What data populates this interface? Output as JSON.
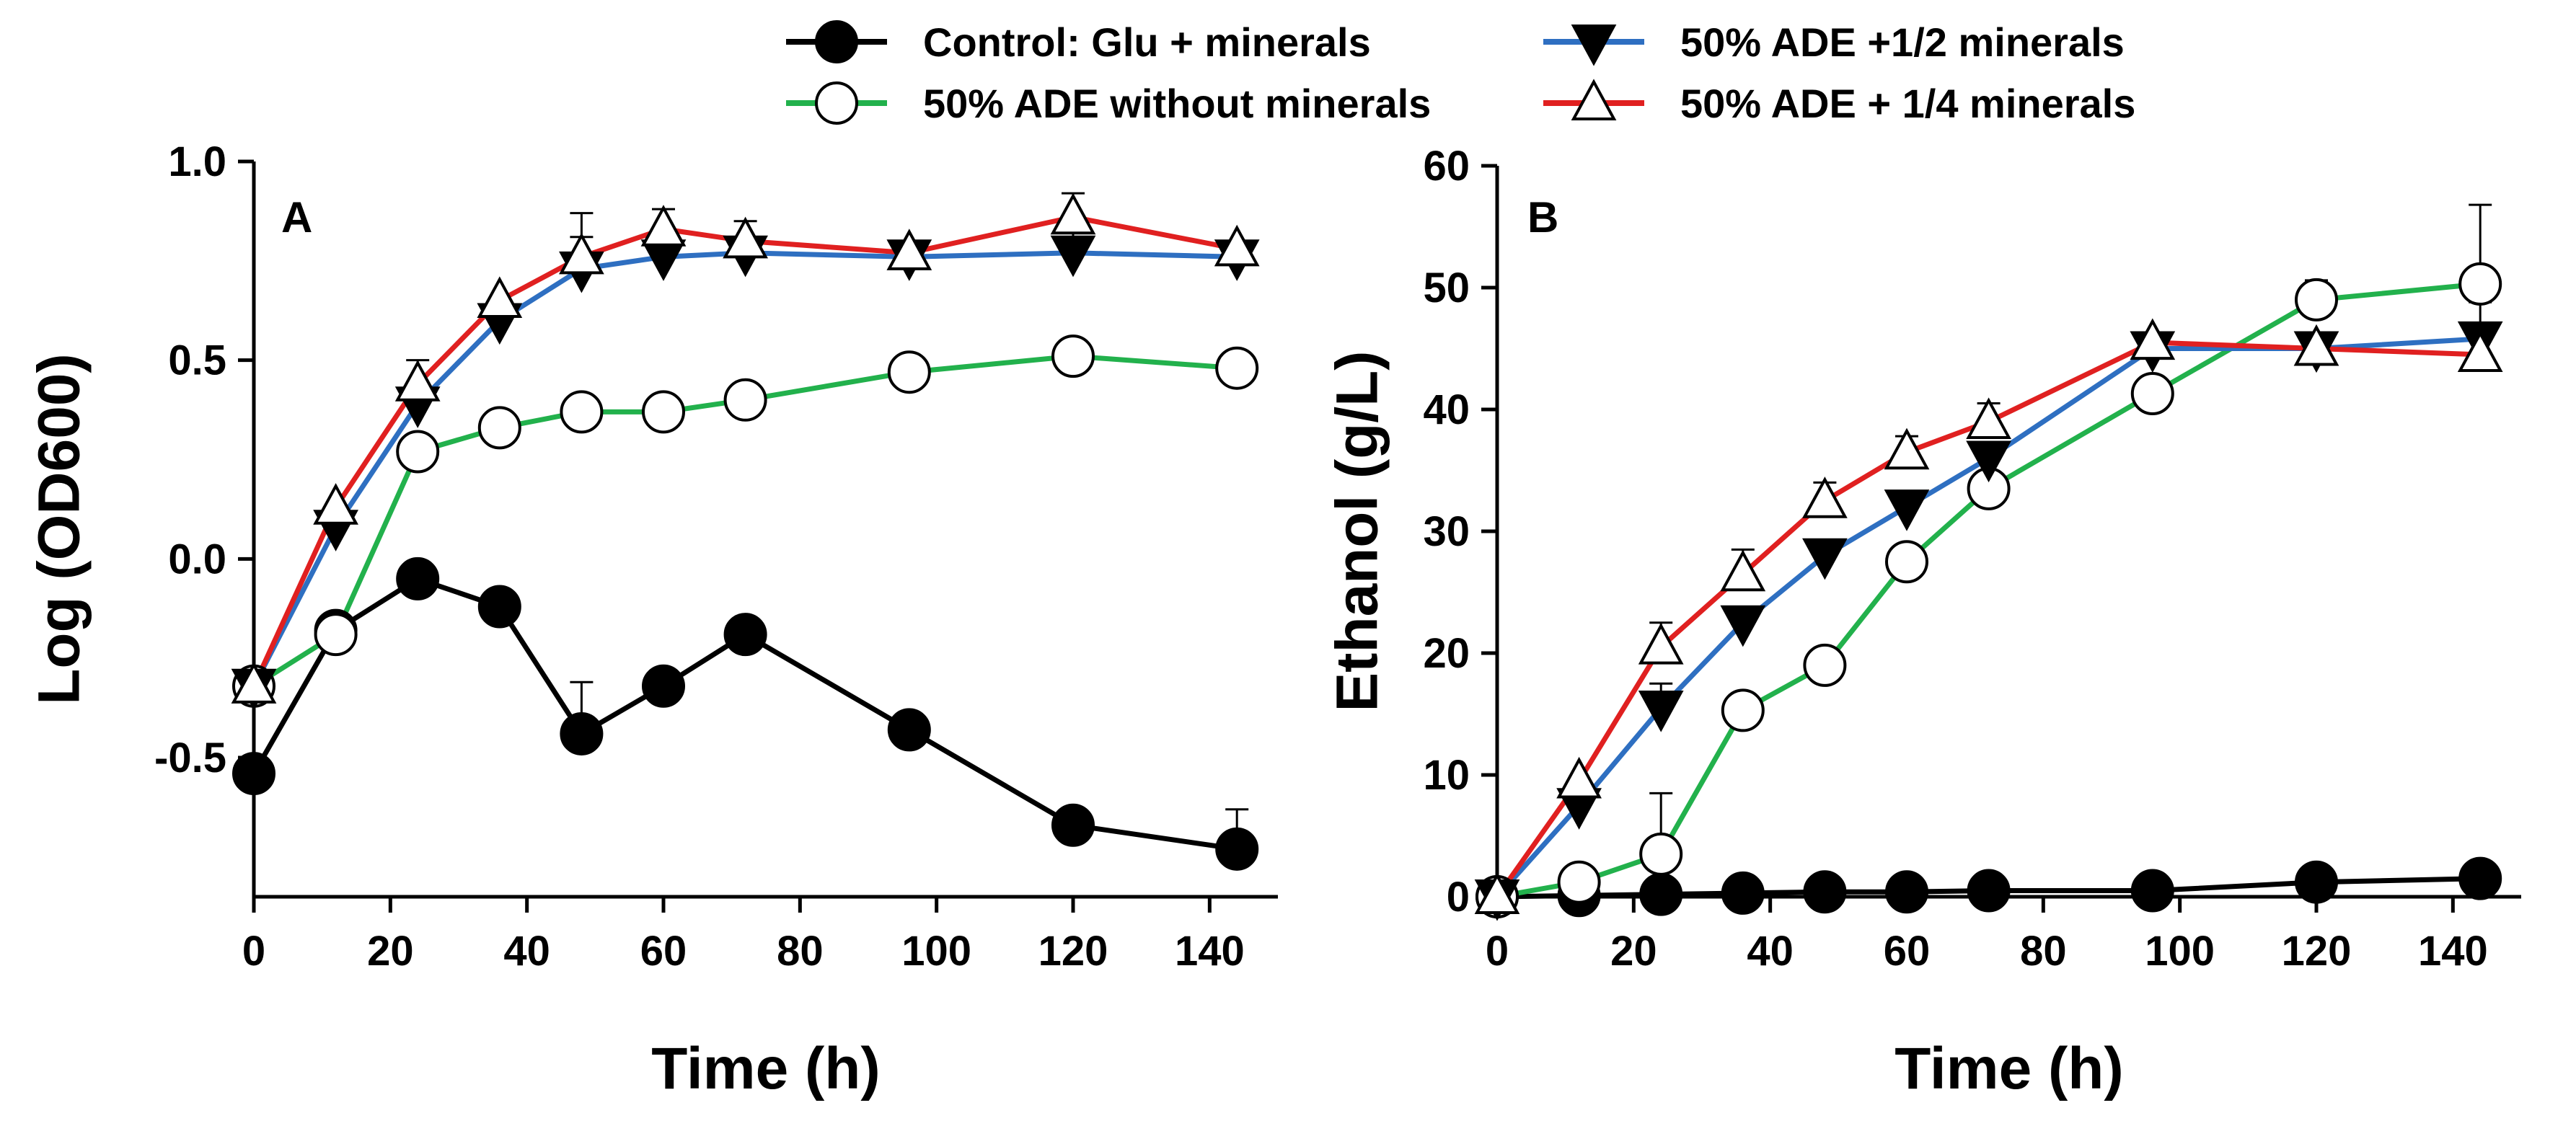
{
  "legend": [
    {
      "label": "Control: Glu + minerals",
      "series": 0
    },
    {
      "label": "50% ADE +1/2 minerals",
      "series": 2
    },
    {
      "label": "50% ADE without minerals",
      "series": 1
    },
    {
      "label": "50% ADE + 1/4 minerals",
      "series": 3
    }
  ],
  "chart_data": [
    {
      "type": "line",
      "panel": "A",
      "xlabel": "Time (h)",
      "ylabel": "Log (OD600)",
      "xlim": [
        0,
        150
      ],
      "ylim": [
        -0.85,
        1.0
      ],
      "xticks": [
        0,
        20,
        40,
        60,
        80,
        100,
        120,
        140
      ],
      "yticks": [
        -0.5,
        0.0,
        0.5,
        1.0
      ],
      "ytick_labels": [
        "-0.5",
        "0.0",
        "0.5",
        "1.0"
      ],
      "series": [
        {
          "name": "Control: Glu + minerals",
          "color": "#000000",
          "marker": "filled-circle",
          "x": [
            0,
            12,
            24,
            36,
            48,
            60,
            72,
            96,
            120,
            144
          ],
          "y": [
            -0.54,
            -0.18,
            -0.05,
            -0.12,
            -0.44,
            -0.32,
            -0.19,
            -0.43,
            -0.67,
            -0.73
          ],
          "err": [
            0,
            0,
            0,
            0,
            0.13,
            0,
            0,
            0,
            0,
            0.1
          ]
        },
        {
          "name": "50% ADE without minerals",
          "color": "#22b14c",
          "marker": "open-circle",
          "x": [
            0,
            12,
            24,
            36,
            48,
            60,
            72,
            96,
            120,
            144
          ],
          "y": [
            -0.32,
            -0.19,
            0.27,
            0.33,
            0.37,
            0.37,
            0.4,
            0.47,
            0.51,
            0.48
          ],
          "err": [
            0,
            0,
            0,
            0,
            0,
            0,
            0,
            0,
            0,
            0
          ]
        },
        {
          "name": "50% ADE +1/2 minerals",
          "color": "#2e6fc1",
          "marker": "filled-triangle-down",
          "x": [
            0,
            12,
            24,
            36,
            48,
            60,
            72,
            96,
            120,
            144
          ],
          "y": [
            -0.32,
            0.08,
            0.39,
            0.6,
            0.73,
            0.76,
            0.77,
            0.76,
            0.77,
            0.76
          ],
          "err": [
            0,
            0,
            0,
            0,
            0.08,
            0,
            0,
            0,
            0.06,
            0
          ]
        },
        {
          "name": "50% ADE + 1/4 minerals",
          "color": "#e02020",
          "marker": "open-triangle-up",
          "x": [
            0,
            12,
            24,
            36,
            48,
            60,
            72,
            96,
            120,
            144
          ],
          "y": [
            -0.32,
            0.13,
            0.44,
            0.65,
            0.76,
            0.83,
            0.8,
            0.77,
            0.86,
            0.78
          ],
          "err": [
            0,
            0,
            0.06,
            0,
            0.11,
            0.05,
            0.05,
            0,
            0.06,
            0
          ]
        }
      ]
    },
    {
      "type": "line",
      "panel": "B",
      "xlabel": "Time (h)",
      "ylabel": "Ethanol (g/L)",
      "xlim": [
        0,
        150
      ],
      "ylim": [
        0,
        60
      ],
      "xticks": [
        0,
        20,
        40,
        60,
        80,
        100,
        120,
        140
      ],
      "yticks": [
        0,
        10,
        20,
        30,
        40,
        50,
        60
      ],
      "ytick_labels": [
        "0",
        "10",
        "20",
        "30",
        "40",
        "50",
        "60"
      ],
      "series": [
        {
          "name": "Control: Glu + minerals",
          "color": "#000000",
          "marker": "filled-circle",
          "x": [
            0,
            12,
            24,
            36,
            48,
            60,
            72,
            96,
            120,
            144
          ],
          "y": [
            0,
            0.1,
            0.2,
            0.3,
            0.4,
            0.4,
            0.5,
            0.5,
            1.2,
            1.5
          ],
          "err": [
            0,
            0,
            0,
            0,
            0,
            0,
            0,
            0,
            0,
            0
          ]
        },
        {
          "name": "50% ADE without minerals",
          "color": "#22b14c",
          "marker": "open-circle",
          "x": [
            0,
            12,
            24,
            36,
            48,
            60,
            72,
            96,
            120,
            144
          ],
          "y": [
            0,
            1.2,
            3.5,
            15.3,
            19.0,
            27.5,
            33.5,
            41.3,
            49.0,
            50.3
          ],
          "err": [
            0,
            0,
            5.0,
            0,
            0,
            0,
            1.0,
            1.2,
            1.6,
            6.5
          ]
        },
        {
          "name": "50% ADE +1/2 minerals",
          "color": "#2e6fc1",
          "marker": "filled-triangle-down",
          "x": [
            0,
            12,
            24,
            36,
            48,
            60,
            72,
            96,
            120,
            144
          ],
          "y": [
            0,
            7.5,
            15.5,
            22.5,
            28.0,
            32.0,
            36.0,
            45.0,
            45.0,
            45.8
          ],
          "err": [
            0,
            0,
            2.0,
            0,
            0,
            0,
            0,
            0,
            0,
            3.0
          ]
        },
        {
          "name": "50% ADE + 1/4 minerals",
          "color": "#e02020",
          "marker": "open-triangle-up",
          "x": [
            0,
            12,
            24,
            36,
            48,
            60,
            72,
            96,
            120,
            144
          ],
          "y": [
            0,
            9.5,
            20.5,
            26.5,
            32.5,
            36.5,
            39.0,
            45.5,
            45.0,
            44.5
          ],
          "err": [
            0,
            0,
            2.0,
            2.0,
            1.5,
            1.3,
            1.5,
            0,
            0,
            2.0
          ]
        }
      ]
    }
  ]
}
